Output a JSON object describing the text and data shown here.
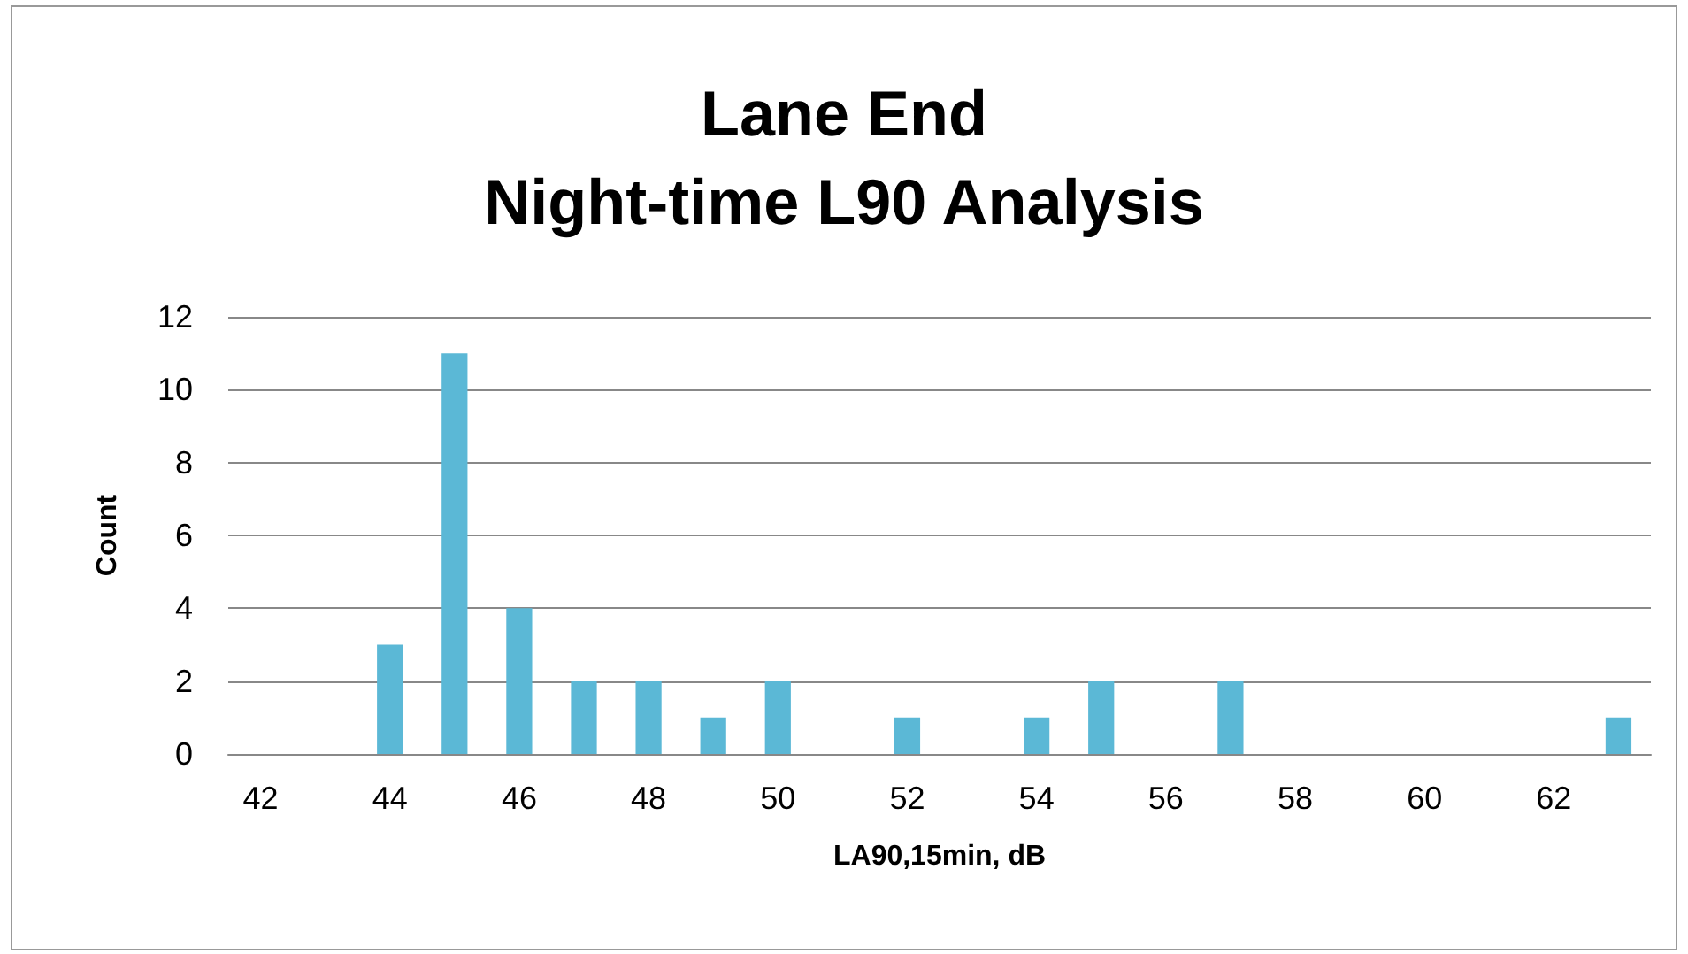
{
  "chart_data": {
    "type": "bar",
    "title": "Lane End\nNight-time L90 Analysis",
    "xlabel": "LA90,15min, dB",
    "ylabel": "Count",
    "categories": [
      "42",
      null,
      "44",
      null,
      "46",
      null,
      "48",
      null,
      "50",
      null,
      "52",
      null,
      "54",
      null,
      "56",
      null,
      "58",
      null,
      "60",
      null,
      "62",
      null
    ],
    "values": [
      0,
      0,
      3,
      11,
      4,
      2,
      2,
      1,
      2,
      0,
      1,
      0,
      1,
      2,
      0,
      2,
      0,
      0,
      0,
      0,
      0,
      1
    ],
    "color": "#5bb8d6",
    "ylim": [
      0,
      12
    ],
    "yticks": [
      0,
      2,
      4,
      6,
      8,
      10,
      12
    ],
    "grid": "y"
  }
}
